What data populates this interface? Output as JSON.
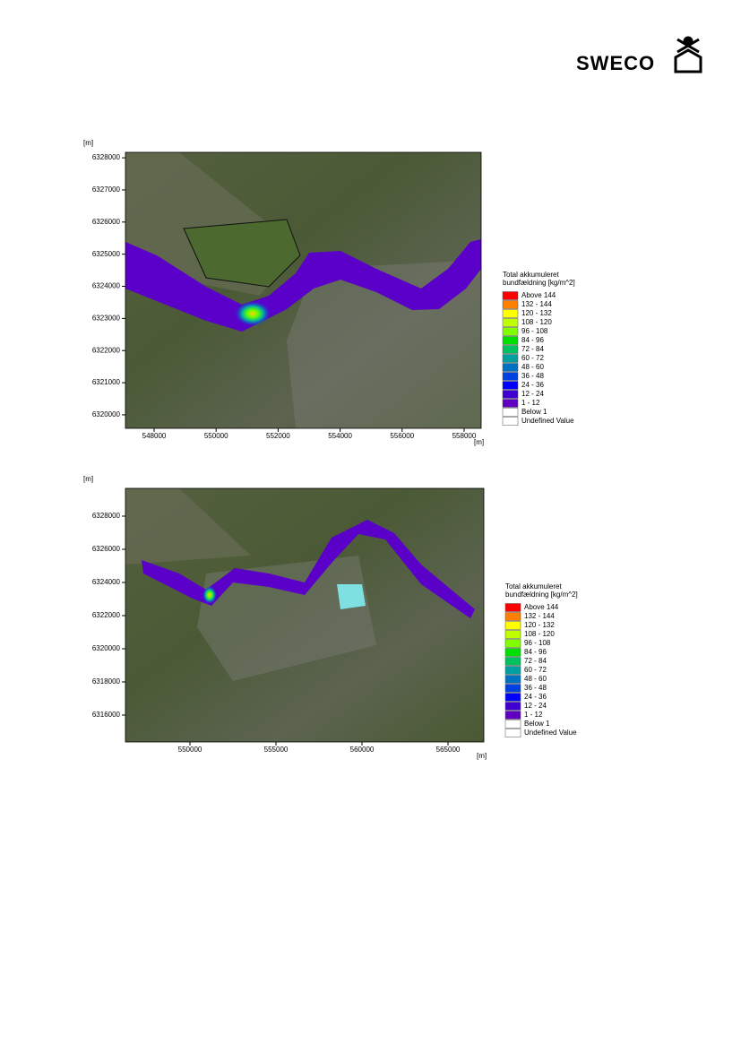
{
  "header": {
    "logo": "SWECO"
  },
  "figures": [
    {
      "y_unit": "[m]",
      "x_unit": "[m]",
      "xlim": [
        547075,
        558550
      ],
      "ylim": [
        6319580,
        6328170
      ],
      "xticks": [
        548000,
        550000,
        552000,
        554000,
        556000,
        558000
      ],
      "yticks": [
        6320000,
        6321000,
        6322000,
        6323000,
        6324000,
        6325000,
        6326000,
        6327000,
        6328000
      ],
      "legend": {
        "title": [
          "Total akkumuleret",
          "bundfældning [kg/m^2]"
        ],
        "items": [
          {
            "label": "Above 144",
            "color": "#ff0000"
          },
          {
            "label": "132 - 144",
            "color": "#ff8000"
          },
          {
            "label": "120 - 132",
            "color": "#ffff00"
          },
          {
            "label": "108 - 120",
            "color": "#c0ff00"
          },
          {
            "label": "96 - 108",
            "color": "#80ff00"
          },
          {
            "label": "84 - 96",
            "color": "#00e000"
          },
          {
            "label": "72 - 84",
            "color": "#00c060"
          },
          {
            "label": "60 - 72",
            "color": "#00a0a0"
          },
          {
            "label": "48 - 60",
            "color": "#0070c0"
          },
          {
            "label": "36 - 48",
            "color": "#0040e0"
          },
          {
            "label": "24 - 36",
            "color": "#0000ff"
          },
          {
            "label": "12 - 24",
            "color": "#4000d0"
          },
          {
            "label": "1 - 12",
            "color": "#6000c0"
          },
          {
            "label": "Below 1",
            "color": "#ffffff"
          },
          {
            "label": "Undefined Value",
            "color": "#ffffff"
          }
        ]
      }
    },
    {
      "y_unit": "[m]",
      "x_unit": "[m]",
      "xlim": [
        546250,
        567083
      ],
      "ylim": [
        6314378,
        6329676
      ],
      "xticks": [
        550000,
        555000,
        560000,
        565000
      ],
      "yticks": [
        6316000,
        6318000,
        6320000,
        6322000,
        6324000,
        6326000,
        6328000
      ],
      "legend": {
        "title": [
          "Total akkumuleret",
          "bundfældning [kg/m^2]"
        ],
        "items": [
          {
            "label": "Above 144",
            "color": "#ff0000"
          },
          {
            "label": "132 - 144",
            "color": "#ff8000"
          },
          {
            "label": "120 - 132",
            "color": "#ffff00"
          },
          {
            "label": "108 - 120",
            "color": "#c0ff00"
          },
          {
            "label": "96 - 108",
            "color": "#80ff00"
          },
          {
            "label": "84 - 96",
            "color": "#00e000"
          },
          {
            "label": "72 - 84",
            "color": "#00c060"
          },
          {
            "label": "60 - 72",
            "color": "#00a0a0"
          },
          {
            "label": "48 - 60",
            "color": "#0070c0"
          },
          {
            "label": "36 - 48",
            "color": "#0040e0"
          },
          {
            "label": "24 - 36",
            "color": "#0000ff"
          },
          {
            "label": "12 - 24",
            "color": "#4000d0"
          },
          {
            "label": "1 - 12",
            "color": "#6000c0"
          },
          {
            "label": "Below 1",
            "color": "#ffffff"
          },
          {
            "label": "Undefined Value",
            "color": "#ffffff"
          }
        ]
      }
    }
  ]
}
